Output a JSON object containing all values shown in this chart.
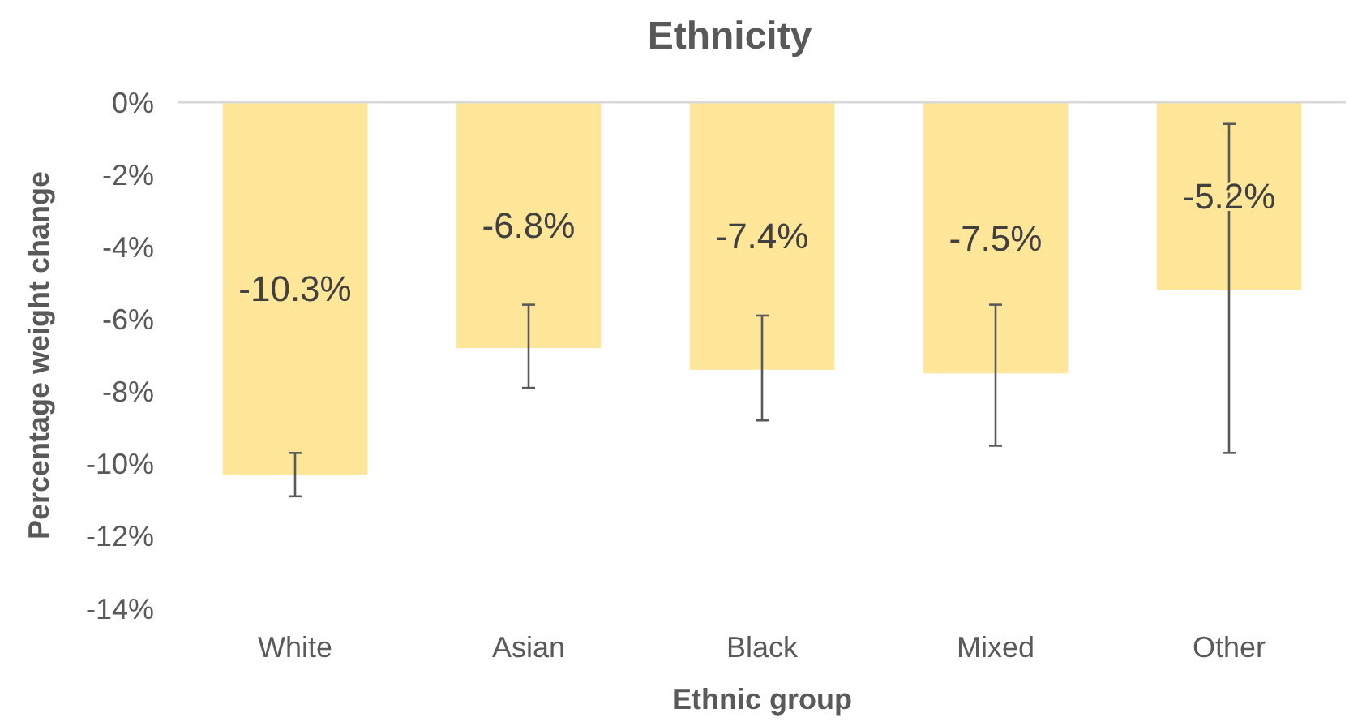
{
  "chart_data": {
    "type": "bar",
    "title": "Ethnicity",
    "xlabel": "Ethnic group",
    "ylabel": "Percentage  weight change",
    "categories": [
      "White",
      "Asian",
      "Black",
      "Mixed",
      "Other"
    ],
    "values": [
      -10.3,
      -6.8,
      -7.4,
      -7.5,
      -5.2
    ],
    "value_labels": [
      "-10.3%",
      "-6.8%",
      "-7.4%",
      "-7.5%",
      "-5.2%"
    ],
    "errors": [
      [
        -10.9,
        -9.7
      ],
      [
        -7.9,
        -5.6
      ],
      [
        -8.8,
        -5.9
      ],
      [
        -9.5,
        -5.6
      ],
      [
        -9.7,
        -0.6
      ]
    ],
    "color": "#ffe699",
    "ylim": [
      -14,
      0
    ],
    "yticks": [
      {
        "value": 0,
        "label": "0%"
      },
      {
        "value": -2,
        "label": "-2%"
      },
      {
        "value": -4,
        "label": "-4%"
      },
      {
        "value": -6,
        "label": "-6%"
      },
      {
        "value": -8,
        "label": "-8%"
      },
      {
        "value": -10,
        "label": "-10%"
      },
      {
        "value": -12,
        "label": "-12%"
      },
      {
        "value": -14,
        "label": "-14%"
      }
    ],
    "grid": false
  }
}
